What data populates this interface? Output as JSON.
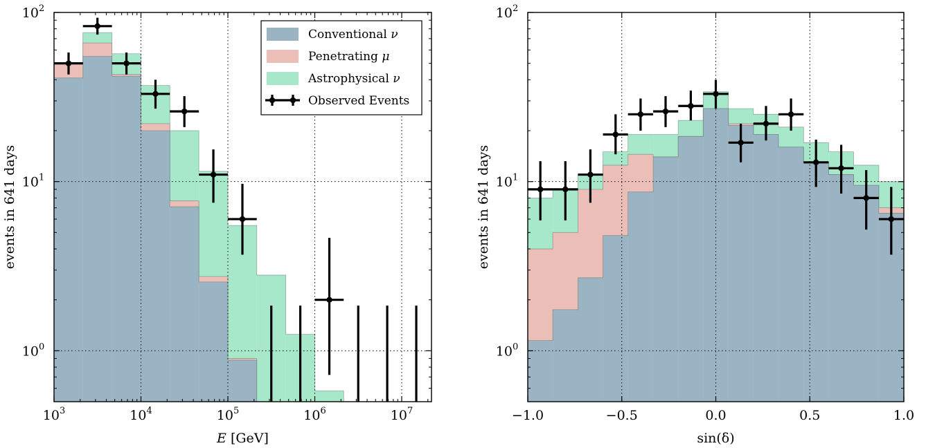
{
  "colors": {
    "conventional": "#9bb4c3",
    "penetrating": "#ebbfb7",
    "astrophysical": "#a7e8cb",
    "observed": "#000000"
  },
  "chart_data": [
    {
      "type": "histogram",
      "xscale": "log",
      "yscale": "log",
      "xlabel_italic": "E",
      "xlabel_rest": " [GeV]",
      "ylabel": "events in 641 days",
      "xlim": [
        1000,
        22000000
      ],
      "ylim": [
        0.5,
        100
      ],
      "grid": true,
      "xticks": [
        {
          "base": "10",
          "exp": "3",
          "value": 1000
        },
        {
          "base": "10",
          "exp": "4",
          "value": 10000
        },
        {
          "base": "10",
          "exp": "5",
          "value": 100000
        },
        {
          "base": "10",
          "exp": "6",
          "value": 1000000
        },
        {
          "base": "10",
          "exp": "7",
          "value": 10000000
        }
      ],
      "yticks": [
        {
          "base": "10",
          "exp": "0",
          "value": 1
        },
        {
          "base": "10",
          "exp": "1",
          "value": 10
        },
        {
          "base": "10",
          "exp": "2",
          "value": 100
        }
      ],
      "bin_edges": [
        1000,
        2150,
        4640,
        10000,
        21500,
        46400,
        100000,
        215000,
        464000,
        1000000,
        2150000,
        4640000,
        10000000,
        21500000
      ],
      "series": [
        {
          "name": "Astrophysical ν",
          "key": "astrophysical",
          "values": [
            50,
            76,
            57,
            37,
            20,
            11.5,
            5.5,
            2.8,
            1.25,
            0.58,
            0.45,
            0.4,
            0.4
          ]
        },
        {
          "name": "Penetrating μ",
          "key": "penetrating",
          "values": [
            50,
            66,
            43,
            22,
            7.7,
            2.75,
            0.9,
            0.4,
            0.4,
            0.4,
            0.4,
            0.4,
            0.4
          ]
        },
        {
          "name": "Conventional ν",
          "key": "conventional",
          "values": [
            41,
            55,
            42,
            20,
            7.1,
            2.55,
            0.88,
            0.4,
            0.4,
            0.4,
            0.4,
            0.4,
            0.4
          ]
        }
      ],
      "observed": {
        "name": "Observed Events",
        "points": [
          {
            "x": 1470,
            "y": 50,
            "ylo": 43,
            "yhi": 58
          },
          {
            "x": 3160,
            "y": 83,
            "ylo": 74,
            "yhi": 93
          },
          {
            "x": 6810,
            "y": 50,
            "ylo": 43,
            "yhi": 58
          },
          {
            "x": 14700,
            "y": 33,
            "ylo": 27,
            "yhi": 40
          },
          {
            "x": 31600,
            "y": 26,
            "ylo": 21,
            "yhi": 32
          },
          {
            "x": 68100,
            "y": 11,
            "ylo": 7.5,
            "yhi": 15.5
          },
          {
            "x": 147000,
            "y": 6,
            "ylo": 3.7,
            "yhi": 9.7
          },
          {
            "x": 316000,
            "y": null,
            "ylo": 0.4,
            "yhi": 1.85
          },
          {
            "x": 681000,
            "y": null,
            "ylo": 0.4,
            "yhi": 1.85
          },
          {
            "x": 1470000,
            "y": 2,
            "ylo": 0.72,
            "yhi": 4.65
          },
          {
            "x": 3160000,
            "y": null,
            "ylo": 0.4,
            "yhi": 1.85
          },
          {
            "x": 6810000,
            "y": null,
            "ylo": 0.4,
            "yhi": 1.85
          },
          {
            "x": 14700000,
            "y": null,
            "ylo": 0.4,
            "yhi": 1.85
          }
        ]
      },
      "legend": {
        "placement": "top-right",
        "items": [
          {
            "label": "Conventional ",
            "symbol": "ν",
            "key": "conventional",
            "kind": "patch"
          },
          {
            "label": "Penetrating ",
            "symbol": "μ",
            "key": "penetrating",
            "kind": "patch"
          },
          {
            "label": "Astrophysical ",
            "symbol": "ν",
            "key": "astrophysical",
            "kind": "patch"
          },
          {
            "label": "Observed Events",
            "symbol": "",
            "key": "observed",
            "kind": "errorbar"
          }
        ]
      }
    },
    {
      "type": "histogram",
      "xscale": "linear",
      "yscale": "log",
      "xlabel_italic": "",
      "xlabel_rest": "sin(δ)",
      "ylabel": "events in 641 days",
      "xlim": [
        -1.0,
        1.0
      ],
      "ylim": [
        0.5,
        100
      ],
      "grid": true,
      "xticks": [
        {
          "label": "−1.0",
          "value": -1.0
        },
        {
          "label": "−0.5",
          "value": -0.5
        },
        {
          "label": "0.0",
          "value": 0.0
        },
        {
          "label": "0.5",
          "value": 0.5
        },
        {
          "label": "1.0",
          "value": 1.0
        }
      ],
      "yticks": [
        {
          "base": "10",
          "exp": "0",
          "value": 1
        },
        {
          "base": "10",
          "exp": "1",
          "value": 10
        },
        {
          "base": "10",
          "exp": "2",
          "value": 100
        }
      ],
      "bin_edges": [
        -1.0,
        -0.867,
        -0.733,
        -0.6,
        -0.467,
        -0.333,
        -0.2,
        -0.067,
        0.067,
        0.2,
        0.333,
        0.467,
        0.6,
        0.733,
        0.867,
        1.0
      ],
      "series": [
        {
          "name": "Astrophysical ν",
          "key": "astrophysical",
          "values": [
            8,
            9,
            11,
            15,
            19,
            19,
            23,
            34,
            27,
            25,
            21,
            17,
            15,
            12.5,
            10
          ]
        },
        {
          "name": "Penetrating μ",
          "key": "penetrating",
          "values": [
            4,
            5,
            9,
            12.5,
            14.5,
            14,
            18.5,
            27,
            22,
            19,
            16,
            13,
            11,
            9.5,
            7
          ]
        },
        {
          "name": "Conventional ν",
          "key": "conventional",
          "values": [
            1.15,
            1.75,
            2.7,
            4.8,
            8.7,
            14,
            18.5,
            27,
            21.5,
            19,
            16,
            13,
            11,
            9.5,
            6.5
          ]
        }
      ],
      "observed": {
        "name": "Observed Events",
        "points": [
          {
            "x": -0.933,
            "y": 9,
            "ylo": 5.9,
            "yhi": 13.2
          },
          {
            "x": -0.8,
            "y": 9,
            "ylo": 5.9,
            "yhi": 13.2
          },
          {
            "x": -0.667,
            "y": 11,
            "ylo": 7.5,
            "yhi": 15.5
          },
          {
            "x": -0.533,
            "y": 19,
            "ylo": 14.5,
            "yhi": 25
          },
          {
            "x": -0.4,
            "y": 25,
            "ylo": 20,
            "yhi": 31
          },
          {
            "x": -0.267,
            "y": 26,
            "ylo": 21,
            "yhi": 32
          },
          {
            "x": -0.133,
            "y": 28,
            "ylo": 23,
            "yhi": 34.5
          },
          {
            "x": 0.0,
            "y": 33,
            "ylo": 27,
            "yhi": 40
          },
          {
            "x": 0.133,
            "y": 17,
            "ylo": 13,
            "yhi": 22
          },
          {
            "x": 0.267,
            "y": 22,
            "ylo": 17.5,
            "yhi": 28
          },
          {
            "x": 0.4,
            "y": 25,
            "ylo": 20,
            "yhi": 31
          },
          {
            "x": 0.533,
            "y": 13,
            "ylo": 9.3,
            "yhi": 17.7
          },
          {
            "x": 0.667,
            "y": 12,
            "ylo": 8.5,
            "yhi": 16.5
          },
          {
            "x": 0.8,
            "y": 8,
            "ylo": 5.2,
            "yhi": 11.7
          },
          {
            "x": 0.933,
            "y": 6,
            "ylo": 3.7,
            "yhi": 9.3
          }
        ]
      }
    }
  ]
}
